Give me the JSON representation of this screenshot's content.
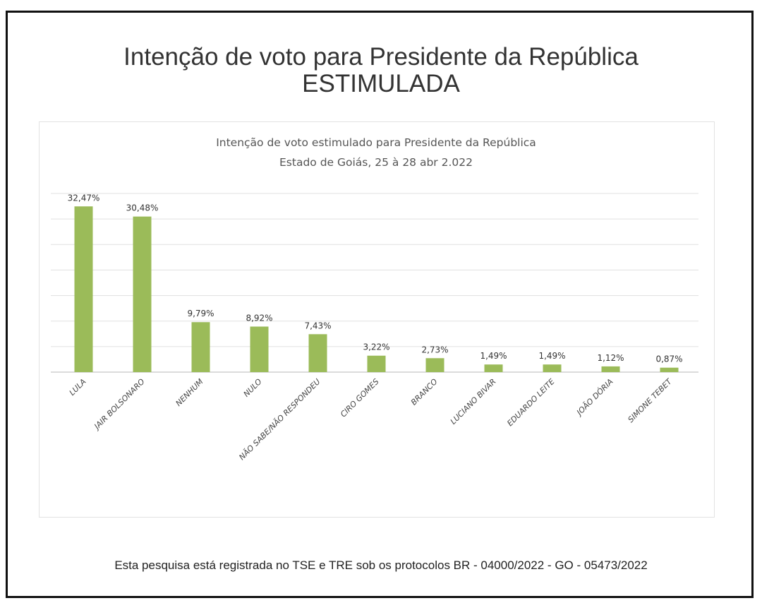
{
  "header": {
    "title_line1": "Intenção de voto para Presidente da República",
    "title_line2": "ESTIMULADA"
  },
  "footer": "Esta pesquisa está registrada no TSE e TRE sob os protocolos BR - 04000/2022 - GO - 05473/2022",
  "chart_data": {
    "type": "bar",
    "title": "Intenção de voto estimulado para Presidente da República",
    "subtitle": "Estado de Goiás, 25 à 28 abr 2.022",
    "categories": [
      "LULA",
      "JAIR BOLSONARO",
      "NENHUM",
      "NULO",
      "NÃO SABE/NÃO RESPONDEU",
      "CIRO GOMES",
      "BRANCO",
      "LUCIANO BIVAR",
      "EDUARDO LEITE",
      "JOÃO DÓRIA",
      "SIMONE TEBET"
    ],
    "values": [
      32.47,
      30.48,
      9.79,
      8.92,
      7.43,
      3.22,
      2.73,
      1.49,
      1.49,
      1.12,
      0.87
    ],
    "data_labels": [
      "32,47%",
      "30,48%",
      "9,79%",
      "8,92%",
      "7,43%",
      "3,22%",
      "2,73%",
      "1,49%",
      "1,49%",
      "1,12%",
      "0,87%"
    ],
    "xlabel": "",
    "ylabel": "",
    "ylim": [
      0,
      35
    ],
    "grid_step": 5,
    "grid": true,
    "bar_color": "#9bbb59"
  }
}
